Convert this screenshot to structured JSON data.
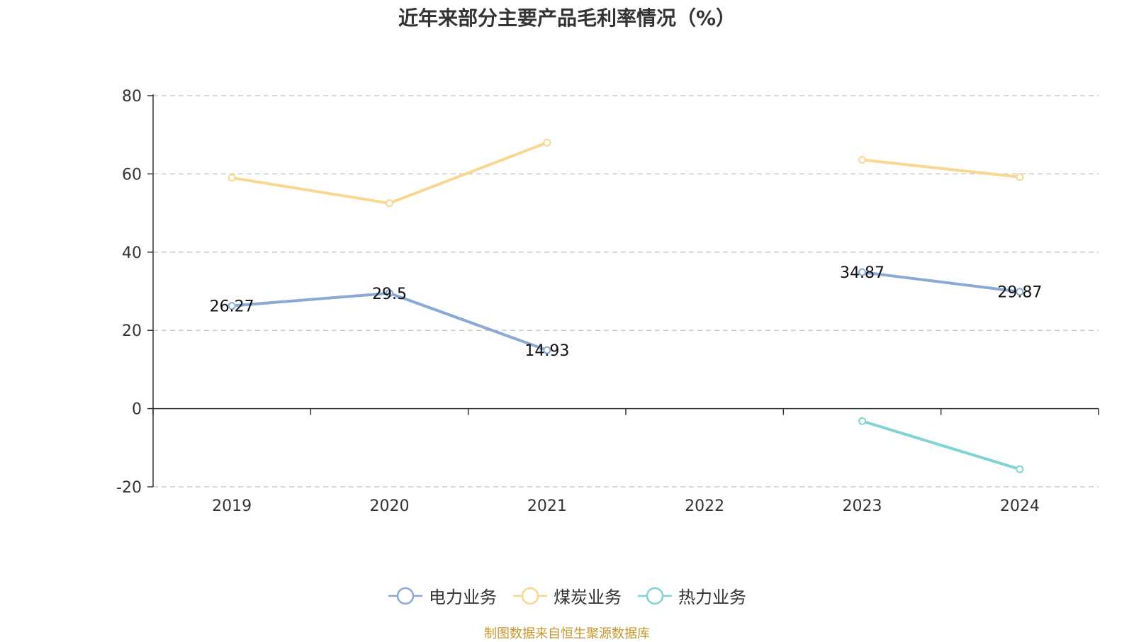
{
  "chart_data": {
    "type": "line",
    "title": "近年来部分主要产品毛利率情况（%）",
    "categories": [
      "2019",
      "2020",
      "2021",
      "2022",
      "2023",
      "2024"
    ],
    "ylim": [
      -20,
      80
    ],
    "yticks": [
      80,
      60,
      40,
      20,
      0,
      -20
    ],
    "grid": true,
    "legend_position": "bottom",
    "series": [
      {
        "name": "电力业务",
        "color": "#8aa9d6",
        "show_labels": true,
        "values": [
          26.27,
          29.5,
          14.93,
          null,
          34.87,
          29.87
        ]
      },
      {
        "name": "煤炭业务",
        "color": "#fad791",
        "show_labels": false,
        "values": [
          59,
          52.5,
          68,
          null,
          63.6,
          59.2
        ]
      },
      {
        "name": "热力业务",
        "color": "#80d4d4",
        "show_labels": false,
        "values": [
          null,
          null,
          null,
          null,
          -3.2,
          -15.5
        ]
      }
    ]
  },
  "source_text": "制图数据来自恒生聚源数据库"
}
